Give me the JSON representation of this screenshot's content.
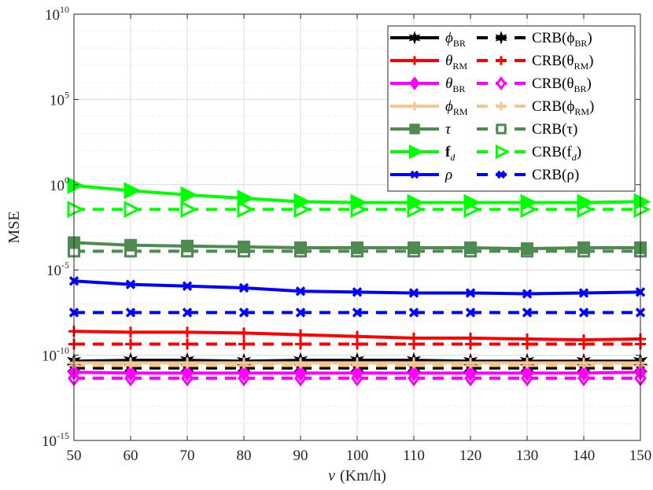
{
  "chart_data": {
    "type": "line",
    "title": "",
    "xlabel_var": "v",
    "xlabel_unit": "(Km/h)",
    "ylabel": "MSE",
    "x": [
      50,
      60,
      70,
      80,
      90,
      100,
      110,
      120,
      130,
      140,
      150
    ],
    "xlim": [
      50,
      150
    ],
    "xticks": [
      "50",
      "60",
      "70",
      "80",
      "90",
      "100",
      "110",
      "120",
      "130",
      "140",
      "150"
    ],
    "ylim_exponent": [
      -15,
      10
    ],
    "yscale": "log",
    "yticks": [
      {
        "base": "10",
        "exp": "10"
      },
      {
        "base": "10",
        "exp": "5"
      },
      {
        "base": "10",
        "exp": "0"
      },
      {
        "base": "10",
        "exp": "-5"
      },
      {
        "base": "10",
        "exp": "-10"
      },
      {
        "base": "10",
        "exp": "-15"
      }
    ],
    "grid": true,
    "legend_position": "top-right",
    "series": [
      {
        "name": "φ_BR",
        "legend_main": "ϕ",
        "legend_sub": "BR",
        "color": "#000000",
        "dash": "solid",
        "marker": "star",
        "exp_values": [
          -10.35,
          -10.3,
          -10.3,
          -10.35,
          -10.3,
          -10.3,
          -10.3,
          -10.35,
          -10.35,
          -10.35,
          -10.35
        ]
      },
      {
        "name": "θ_RM",
        "legend_main": "θ",
        "legend_sub": "RM",
        "color": "#ff0000",
        "dash": "solid",
        "marker": "plus",
        "exp_values": [
          -8.6,
          -8.65,
          -8.65,
          -8.7,
          -8.8,
          -8.9,
          -9.0,
          -9.0,
          -9.05,
          -9.1,
          -9.05
        ]
      },
      {
        "name": "θ_BR",
        "legend_main": "θ",
        "legend_sub": "BR",
        "color": "#ff00ff",
        "dash": "solid",
        "marker": "diamond",
        "exp_values": [
          -11.0,
          -11.05,
          -11.05,
          -11.05,
          -11.05,
          -11.05,
          -11.05,
          -11.05,
          -11.05,
          -11.05,
          -11.0
        ]
      },
      {
        "name": "φ_RM",
        "legend_main": "ϕ",
        "legend_sub": "RM",
        "color": "#f5c690",
        "dash": "solid",
        "marker": "plus",
        "exp_values": [
          -10.45,
          -10.45,
          -10.45,
          -10.45,
          -10.45,
          -10.45,
          -10.45,
          -10.45,
          -10.45,
          -10.45,
          -10.45
        ]
      },
      {
        "name": "τ",
        "legend_main": "τ",
        "legend_sub": "",
        "color": "#4e8b50",
        "dash": "solid",
        "marker": "square",
        "exp_values": [
          -3.4,
          -3.55,
          -3.6,
          -3.65,
          -3.7,
          -3.7,
          -3.7,
          -3.7,
          -3.75,
          -3.7,
          -3.7
        ]
      },
      {
        "name": "f_d",
        "legend_main": "f",
        "legend_sub": "d",
        "color": "#00ff00",
        "dash": "solid",
        "marker": "triangle-right",
        "exp_values": [
          -0.05,
          -0.35,
          -0.6,
          -0.8,
          -1.0,
          -1.05,
          -1.05,
          -1.05,
          -1.05,
          -1.05,
          -1.0
        ]
      },
      {
        "name": "ρ",
        "legend_main": "ρ",
        "legend_sub": "",
        "color": "#0000ff",
        "dash": "solid",
        "marker": "x",
        "exp_values": [
          -5.65,
          -5.85,
          -5.95,
          -6.05,
          -6.25,
          -6.3,
          -6.35,
          -6.35,
          -6.4,
          -6.35,
          -6.3
        ]
      },
      {
        "name": "CRB(φ_BR)",
        "legend_main": "CRB(ϕ",
        "legend_sub": "BR",
        "legend_close": ")",
        "color": "#000000",
        "dash": "dashed",
        "marker": "star",
        "exp_values": [
          -10.75,
          -10.75,
          -10.75,
          -10.75,
          -10.75,
          -10.75,
          -10.75,
          -10.75,
          -10.75,
          -10.75,
          -10.75
        ]
      },
      {
        "name": "CRB(θ_RM)",
        "legend_main": "CRB(θ",
        "legend_sub": "RM",
        "legend_close": ")",
        "color": "#ff0000",
        "dash": "dashed",
        "marker": "plus",
        "exp_values": [
          -9.35,
          -9.35,
          -9.35,
          -9.35,
          -9.35,
          -9.35,
          -9.35,
          -9.35,
          -9.35,
          -9.35,
          -9.35
        ]
      },
      {
        "name": "CRB(θ_BR)",
        "legend_main": "CRB(θ",
        "legend_sub": "BR",
        "legend_close": ")",
        "color": "#ff00ff",
        "dash": "dashed",
        "marker": "diamond-open",
        "exp_values": [
          -11.35,
          -11.35,
          -11.35,
          -11.35,
          -11.35,
          -11.35,
          -11.35,
          -11.35,
          -11.35,
          -11.35,
          -11.35
        ]
      },
      {
        "name": "CRB(φ_RM)",
        "legend_main": "CRB(ϕ",
        "legend_sub": "RM",
        "legend_close": ")",
        "color": "#f5c690",
        "dash": "dashed",
        "marker": "plus",
        "exp_values": [
          -10.6,
          -10.6,
          -10.6,
          -10.6,
          -10.6,
          -10.6,
          -10.6,
          -10.6,
          -10.6,
          -10.6,
          -10.6
        ]
      },
      {
        "name": "CRB(τ)",
        "legend_main": "CRB(τ)",
        "legend_sub": "",
        "color": "#4e8b50",
        "dash": "dashed",
        "marker": "square-open",
        "exp_values": [
          -3.9,
          -3.9,
          -3.9,
          -3.9,
          -3.9,
          -3.9,
          -3.9,
          -3.9,
          -3.9,
          -3.9,
          -3.9
        ]
      },
      {
        "name": "CRB(f_d)",
        "legend_main": "CRB(f",
        "legend_sub": "d",
        "legend_close": ")",
        "color": "#00ff00",
        "dash": "dashed",
        "marker": "triangle-right-open",
        "exp_values": [
          -1.45,
          -1.45,
          -1.45,
          -1.45,
          -1.45,
          -1.45,
          -1.45,
          -1.45,
          -1.45,
          -1.45,
          -1.45
        ]
      },
      {
        "name": "CRB(ρ)",
        "legend_main": "CRB(ρ)",
        "legend_sub": "",
        "color": "#0000ff",
        "dash": "dashed",
        "marker": "x",
        "exp_values": [
          -7.5,
          -7.5,
          -7.5,
          -7.5,
          -7.5,
          -7.5,
          -7.5,
          -7.5,
          -7.5,
          -7.5,
          -7.5
        ]
      }
    ]
  }
}
